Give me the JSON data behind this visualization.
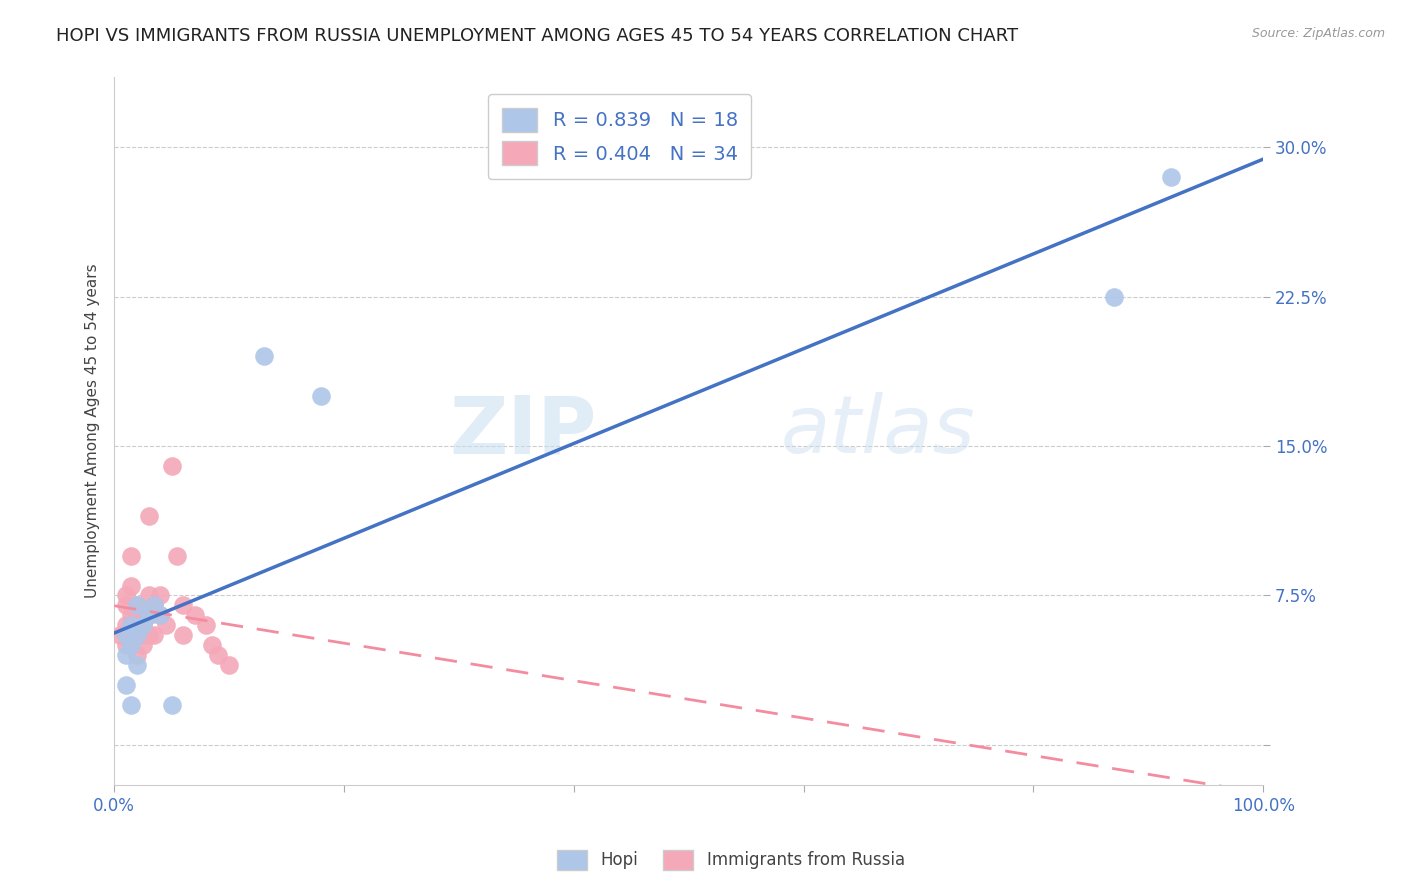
{
  "title": "HOPI VS IMMIGRANTS FROM RUSSIA UNEMPLOYMENT AMONG AGES 45 TO 54 YEARS CORRELATION CHART",
  "source": "Source: ZipAtlas.com",
  "ylabel_label": "Unemployment Among Ages 45 to 54 years",
  "xlim": [
    0.0,
    1.0
  ],
  "ylim": [
    -0.02,
    0.335
  ],
  "hopi_R": 0.839,
  "hopi_N": 18,
  "russia_R": 0.404,
  "russia_N": 34,
  "hopi_color": "#aec6e8",
  "russia_color": "#f4a8b8",
  "hopi_line_color": "#4472c4",
  "russia_line_color": "#f48ca0",
  "watermark_zip": "ZIP",
  "watermark_atlas": "atlas",
  "hopi_x": [
    0.01,
    0.015,
    0.02,
    0.02,
    0.025,
    0.03,
    0.035,
    0.04,
    0.01,
    0.015,
    0.02,
    0.01,
    0.015,
    0.05,
    0.13,
    0.18,
    0.87,
    0.92
  ],
  "hopi_y": [
    0.055,
    0.06,
    0.055,
    0.07,
    0.06,
    0.065,
    0.07,
    0.065,
    0.045,
    0.05,
    0.04,
    0.03,
    0.02,
    0.02,
    0.195,
    0.175,
    0.225,
    0.285
  ],
  "russia_x": [
    0.005,
    0.01,
    0.01,
    0.01,
    0.01,
    0.015,
    0.015,
    0.015,
    0.015,
    0.02,
    0.02,
    0.02,
    0.02,
    0.025,
    0.025,
    0.025,
    0.03,
    0.03,
    0.03,
    0.03,
    0.035,
    0.035,
    0.04,
    0.04,
    0.045,
    0.05,
    0.055,
    0.06,
    0.06,
    0.07,
    0.08,
    0.085,
    0.09,
    0.1
  ],
  "russia_y": [
    0.055,
    0.075,
    0.07,
    0.06,
    0.05,
    0.095,
    0.08,
    0.065,
    0.055,
    0.07,
    0.065,
    0.055,
    0.045,
    0.06,
    0.055,
    0.05,
    0.115,
    0.075,
    0.065,
    0.055,
    0.07,
    0.055,
    0.075,
    0.065,
    0.06,
    0.14,
    0.095,
    0.07,
    0.055,
    0.065,
    0.06,
    0.05,
    0.045,
    0.04
  ],
  "background_color": "#ffffff"
}
